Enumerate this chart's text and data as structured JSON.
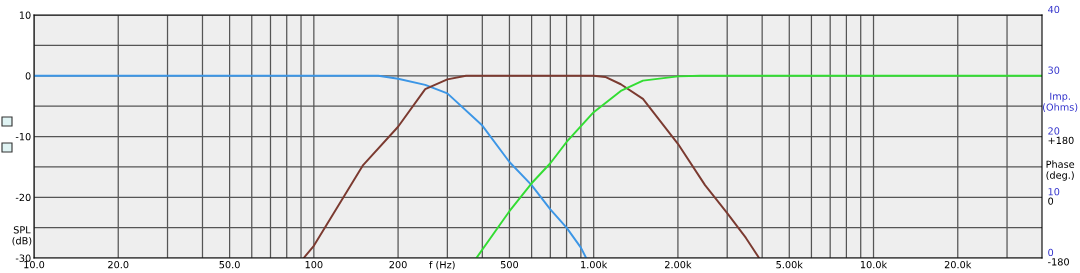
{
  "chart_data": {
    "type": "line",
    "xlabel": "f (Hz)",
    "ylabel": "SPL\n(dB)",
    "y2label": "Imp.\n(Ohms)",
    "y3label": "Phase\n(deg.)",
    "log": "x",
    "grid": true,
    "marker": "none",
    "line_style": "solid",
    "xlim": [
      10,
      40000
    ],
    "xticks": [
      {
        "value": 10,
        "label": "10.0"
      },
      {
        "value": 20,
        "label": "20.0"
      },
      {
        "value": 30,
        "label": null
      },
      {
        "value": 40,
        "label": null
      },
      {
        "value": 50,
        "label": "50.0"
      },
      {
        "value": 60,
        "label": null
      },
      {
        "value": 70,
        "label": null
      },
      {
        "value": 80,
        "label": null
      },
      {
        "value": 90,
        "label": null
      },
      100,
      200,
      {
        "value": 300,
        "label": null
      },
      {
        "value": 400,
        "label": null
      },
      500,
      {
        "value": 600,
        "label": null
      },
      {
        "value": 700,
        "label": null
      },
      {
        "value": 800,
        "label": null
      },
      {
        "value": 900,
        "label": null
      },
      {
        "value": 1000,
        "label": "1.00k"
      },
      {
        "value": 2000,
        "label": "2.00k"
      },
      {
        "value": 3000,
        "label": null
      },
      {
        "value": 4000,
        "label": null
      },
      {
        "value": 5000,
        "label": "5.00k"
      },
      {
        "value": 6000,
        "label": null
      },
      {
        "value": 7000,
        "label": null
      },
      {
        "value": 8000,
        "label": null
      },
      {
        "value": 9000,
        "label": null
      },
      {
        "value": 10000,
        "label": "10.0k"
      },
      {
        "value": 20000,
        "label": "20.0k"
      },
      {
        "value": 30000,
        "label": null
      }
    ],
    "ylim": [
      -30,
      10
    ],
    "yticks": [
      -30,
      {
        "value": -25,
        "label": null
      },
      -20,
      {
        "value": -15,
        "label": null
      },
      -10,
      {
        "value": -5,
        "label": null
      },
      0,
      {
        "value": 5,
        "label": null
      },
      10
    ],
    "y2lim": [
      0,
      40
    ],
    "y2ticks": [
      0,
      10,
      20,
      30,
      40
    ],
    "y3lim": [
      -180,
      540
    ],
    "y3ticks": [
      -180,
      0,
      {
        "value": 180,
        "label": "+180"
      }
    ],
    "series": [
      {
        "color": "#3c96e6",
        "x": [
          10,
          170,
          200,
          250,
          300,
          400,
          500,
          600,
          700,
          800,
          900,
          940
        ],
        "values": [
          0,
          0,
          -0.5,
          -1.5,
          -2.9,
          -8.2,
          -14.2,
          -18,
          -22,
          -25,
          -28.3,
          -30
        ]
      },
      {
        "color": "#7b3a30",
        "x": [
          92,
          100,
          150,
          200,
          250,
          300,
          350,
          1000,
          1100,
          1250,
          1500,
          2000,
          2500,
          3000,
          3500,
          3900
        ],
        "values": [
          -30,
          -28,
          -14.7,
          -8.4,
          -2.2,
          -0.6,
          0,
          0,
          -0.2,
          -1.4,
          -3.8,
          -11.2,
          -18,
          -22.6,
          -26.7,
          -30
        ]
      },
      {
        "color": "#33dd33",
        "x": [
          381,
          500,
          600,
          700,
          800,
          1000,
          1250,
          1500,
          2000,
          2400,
          40000
        ],
        "values": [
          -30,
          -22.3,
          -17.7,
          -14.4,
          -10.9,
          -6,
          -2.5,
          -0.8,
          -0.1,
          0,
          0
        ]
      }
    ]
  }
}
